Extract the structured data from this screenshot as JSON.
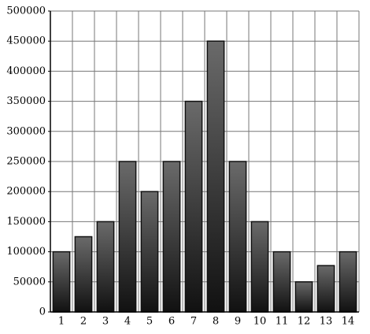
{
  "chart_data": {
    "type": "bar",
    "categories": [
      "1",
      "2",
      "3",
      "4",
      "5",
      "6",
      "7",
      "8",
      "9",
      "10",
      "11",
      "12",
      "13",
      "14"
    ],
    "values": [
      100000,
      125000,
      150000,
      250000,
      200000,
      250000,
      350000,
      450000,
      250000,
      150000,
      100000,
      50000,
      77000,
      100000
    ],
    "color": "#3a3a3a",
    "ylim": [
      0,
      500000
    ],
    "yticks": [
      0,
      50000,
      100000,
      150000,
      200000,
      250000,
      300000,
      350000,
      400000,
      450000,
      500000
    ],
    "grid": true
  }
}
